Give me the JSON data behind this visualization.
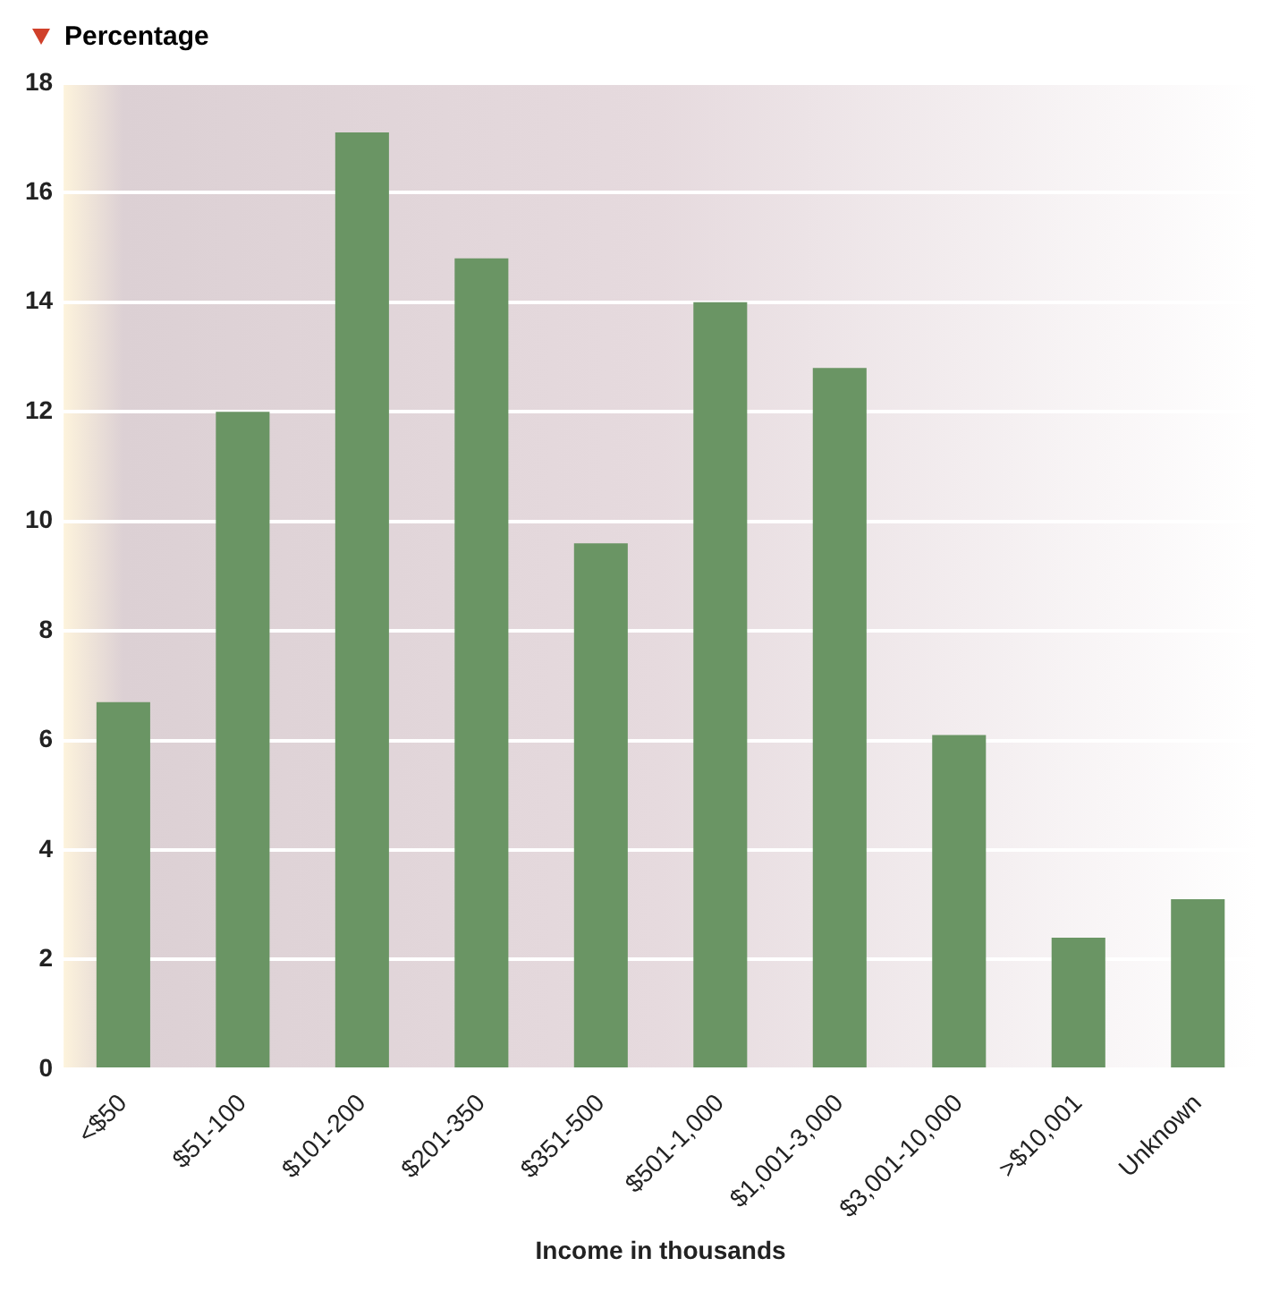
{
  "chart_data": {
    "type": "bar",
    "ylabel": "Percentage",
    "xlabel": "Income in thousands",
    "categories": [
      "<$50",
      "$51-100",
      "$101-200",
      "$201-350",
      "$351-500",
      "$501-1,000",
      "$1,001-3,000",
      "$3,001-10,000",
      ">$10,001",
      "Unknown"
    ],
    "values": [
      6.7,
      12.0,
      17.1,
      14.8,
      9.6,
      14.0,
      12.8,
      6.1,
      2.4,
      3.1
    ],
    "color": "#6a9564",
    "ylim": [
      0,
      18
    ],
    "yticks": [
      0,
      2,
      4,
      6,
      8,
      10,
      12,
      14,
      16,
      18
    ],
    "grid": "y"
  }
}
